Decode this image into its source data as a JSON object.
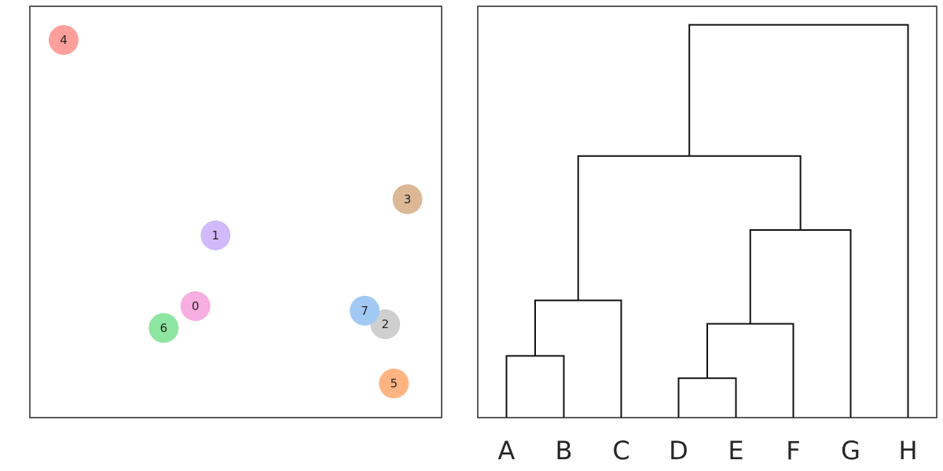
{
  "chart_data": [
    {
      "type": "scatter",
      "title": "",
      "xlabel": "",
      "ylabel": "",
      "xlim": [
        0,
        1
      ],
      "ylim": [
        0,
        1
      ],
      "grid": false,
      "points": [
        {
          "label": "0",
          "x": 0.402,
          "y": 0.271,
          "color": "#f7aee1"
        },
        {
          "label": "1",
          "x": 0.451,
          "y": 0.443,
          "color": "#d0baf9"
        },
        {
          "label": "2",
          "x": 0.863,
          "y": 0.227,
          "color": "#cfcfcf"
        },
        {
          "label": "3",
          "x": 0.917,
          "y": 0.531,
          "color": "#dcb896"
        },
        {
          "label": "4",
          "x": 0.082,
          "y": 0.918,
          "color": "#ff9f9b"
        },
        {
          "label": "5",
          "x": 0.884,
          "y": 0.083,
          "color": "#ffb482"
        },
        {
          "label": "6",
          "x": 0.325,
          "y": 0.218,
          "color": "#8de5a1"
        },
        {
          "label": "7",
          "x": 0.813,
          "y": 0.26,
          "color": "#a1c9f4"
        }
      ]
    },
    {
      "type": "dendrogram",
      "title": "",
      "leaves": [
        "A",
        "B",
        "C",
        "D",
        "E",
        "F",
        "G",
        "H"
      ],
      "ylim": [
        0,
        1
      ],
      "merges": [
        {
          "id": "m1",
          "left": "A",
          "right": "B",
          "height": 0.15
        },
        {
          "id": "m2",
          "left": "D",
          "right": "E",
          "height": 0.096
        },
        {
          "id": "m3",
          "left": "m2",
          "right": "F",
          "height": 0.228
        },
        {
          "id": "m4",
          "left": "m1",
          "right": "C",
          "height": 0.285
        },
        {
          "id": "m5",
          "left": "m3",
          "right": "G",
          "height": 0.456
        },
        {
          "id": "m6",
          "left": "m4",
          "right": "m5",
          "height": 0.636
        },
        {
          "id": "m7",
          "left": "m6",
          "right": "H",
          "height": 0.955
        }
      ]
    }
  ]
}
